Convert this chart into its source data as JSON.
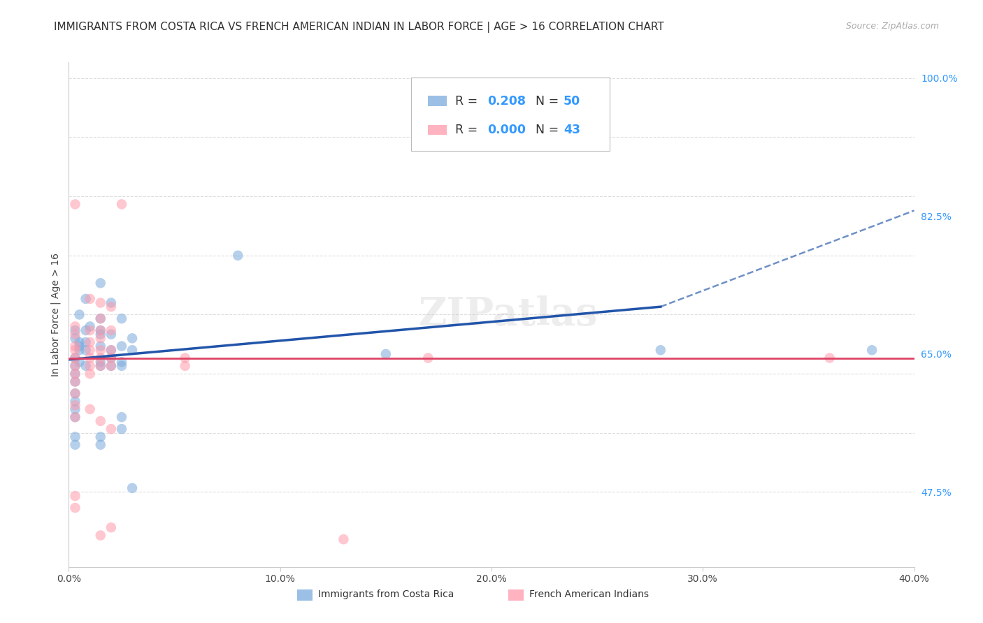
{
  "title": "IMMIGRANTS FROM COSTA RICA VS FRENCH AMERICAN INDIAN IN LABOR FORCE | AGE > 16 CORRELATION CHART",
  "source": "Source: ZipAtlas.com",
  "ylabel": "In Labor Force | Age > 16",
  "xlim": [
    0.0,
    0.4
  ],
  "ylim": [
    0.38,
    1.02
  ],
  "xticks": [
    0.0,
    0.1,
    0.2,
    0.3,
    0.4
  ],
  "xticklabels": [
    "0.0%",
    "10.0%",
    "20.0%",
    "30.0%",
    "40.0%"
  ],
  "right_yticks": [
    0.475,
    0.65,
    0.825,
    1.0
  ],
  "right_yticklabels": [
    "47.5%",
    "65.0%",
    "82.5%",
    "100.0%"
  ],
  "grid_color": "#dddddd",
  "background_color": "#ffffff",
  "watermark": "ZIPatlas",
  "blue_color": "#7aaadd",
  "pink_color": "#ff99aa",
  "blue_line_color": "#2255aa",
  "pink_line_color": "#dd4466",
  "blue_scatter": [
    [
      0.01,
      0.685
    ],
    [
      0.005,
      0.7
    ],
    [
      0.005,
      0.665
    ],
    [
      0.005,
      0.64
    ],
    [
      0.005,
      0.66
    ],
    [
      0.005,
      0.655
    ],
    [
      0.003,
      0.68
    ],
    [
      0.003,
      0.67
    ],
    [
      0.003,
      0.645
    ],
    [
      0.003,
      0.635
    ],
    [
      0.003,
      0.625
    ],
    [
      0.003,
      0.615
    ],
    [
      0.003,
      0.6
    ],
    [
      0.003,
      0.59
    ],
    [
      0.003,
      0.58
    ],
    [
      0.003,
      0.57
    ],
    [
      0.003,
      0.545
    ],
    [
      0.003,
      0.535
    ],
    [
      0.008,
      0.72
    ],
    [
      0.008,
      0.68
    ],
    [
      0.008,
      0.665
    ],
    [
      0.008,
      0.655
    ],
    [
      0.008,
      0.635
    ],
    [
      0.015,
      0.74
    ],
    [
      0.015,
      0.695
    ],
    [
      0.015,
      0.68
    ],
    [
      0.015,
      0.675
    ],
    [
      0.015,
      0.66
    ],
    [
      0.015,
      0.64
    ],
    [
      0.015,
      0.635
    ],
    [
      0.015,
      0.545
    ],
    [
      0.015,
      0.535
    ],
    [
      0.02,
      0.715
    ],
    [
      0.02,
      0.675
    ],
    [
      0.02,
      0.655
    ],
    [
      0.02,
      0.645
    ],
    [
      0.02,
      0.635
    ],
    [
      0.025,
      0.695
    ],
    [
      0.025,
      0.66
    ],
    [
      0.025,
      0.64
    ],
    [
      0.025,
      0.635
    ],
    [
      0.025,
      0.57
    ],
    [
      0.025,
      0.555
    ],
    [
      0.03,
      0.67
    ],
    [
      0.03,
      0.655
    ],
    [
      0.03,
      0.48
    ],
    [
      0.08,
      0.775
    ],
    [
      0.15,
      0.65
    ],
    [
      0.28,
      0.655
    ],
    [
      0.38,
      0.655
    ]
  ],
  "pink_scatter": [
    [
      0.003,
      0.84
    ],
    [
      0.003,
      0.685
    ],
    [
      0.003,
      0.675
    ],
    [
      0.003,
      0.66
    ],
    [
      0.003,
      0.655
    ],
    [
      0.003,
      0.645
    ],
    [
      0.003,
      0.635
    ],
    [
      0.003,
      0.625
    ],
    [
      0.003,
      0.615
    ],
    [
      0.003,
      0.6
    ],
    [
      0.003,
      0.585
    ],
    [
      0.003,
      0.57
    ],
    [
      0.003,
      0.47
    ],
    [
      0.003,
      0.455
    ],
    [
      0.01,
      0.72
    ],
    [
      0.01,
      0.68
    ],
    [
      0.01,
      0.665
    ],
    [
      0.01,
      0.655
    ],
    [
      0.01,
      0.645
    ],
    [
      0.01,
      0.635
    ],
    [
      0.01,
      0.625
    ],
    [
      0.01,
      0.58
    ],
    [
      0.015,
      0.715
    ],
    [
      0.015,
      0.695
    ],
    [
      0.015,
      0.68
    ],
    [
      0.015,
      0.67
    ],
    [
      0.015,
      0.655
    ],
    [
      0.015,
      0.645
    ],
    [
      0.015,
      0.635
    ],
    [
      0.015,
      0.565
    ],
    [
      0.015,
      0.42
    ],
    [
      0.02,
      0.71
    ],
    [
      0.02,
      0.68
    ],
    [
      0.02,
      0.655
    ],
    [
      0.02,
      0.645
    ],
    [
      0.02,
      0.635
    ],
    [
      0.02,
      0.555
    ],
    [
      0.02,
      0.43
    ],
    [
      0.025,
      0.84
    ],
    [
      0.055,
      0.645
    ],
    [
      0.055,
      0.635
    ],
    [
      0.17,
      0.645
    ],
    [
      0.36,
      0.645
    ],
    [
      0.13,
      0.415
    ]
  ],
  "blue_line_x": [
    0.0,
    0.28
  ],
  "blue_line_y": [
    0.643,
    0.71
  ],
  "dashed_line_x": [
    0.28,
    0.4
  ],
  "dashed_line_y": [
    0.71,
    0.832
  ],
  "pink_line_y": 0.645,
  "title_fontsize": 11,
  "axis_label_fontsize": 10,
  "tick_fontsize": 10,
  "right_tick_color": "#3399ff"
}
